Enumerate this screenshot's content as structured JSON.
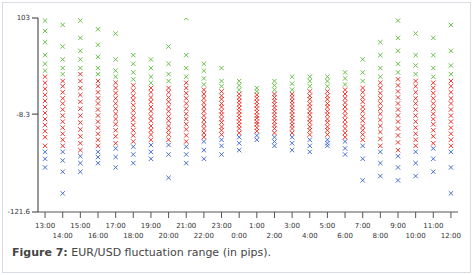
{
  "chart_data": {
    "type": "scatter",
    "caption": "Figure 7: EUR/USD fluctuation range (in pips).",
    "x": [
      0,
      1,
      2,
      3,
      4,
      5,
      6,
      7,
      8,
      9,
      10,
      11,
      12,
      13,
      14,
      15,
      16,
      17,
      18,
      19,
      20,
      21,
      22,
      23
    ],
    "xlim": [
      -0.4,
      23.4
    ],
    "xticks": [
      {
        "value": 0,
        "label": "13:00"
      },
      {
        "value": 1,
        "label": "14:00"
      },
      {
        "value": 2,
        "label": "15:00"
      },
      {
        "value": 3,
        "label": "16:00"
      },
      {
        "value": 4,
        "label": "17:00"
      },
      {
        "value": 5,
        "label": "18:00"
      },
      {
        "value": 6,
        "label": "19:00"
      },
      {
        "value": 7,
        "label": "20:00"
      },
      {
        "value": 8,
        "label": "21:00"
      },
      {
        "value": 9,
        "label": "22:00"
      },
      {
        "value": 10,
        "label": "23:00"
      },
      {
        "value": 11,
        "label": "0:00"
      },
      {
        "value": 12,
        "label": "1:00"
      },
      {
        "value": 13,
        "label": "2:00"
      },
      {
        "value": 14,
        "label": "3:00"
      },
      {
        "value": 15,
        "label": "4:00"
      },
      {
        "value": 16,
        "label": "5:00"
      },
      {
        "value": 17,
        "label": "6:00"
      },
      {
        "value": 18,
        "label": "7:00"
      },
      {
        "value": 19,
        "label": "8:00"
      },
      {
        "value": 20,
        "label": "9:00"
      },
      {
        "value": 21,
        "label": "10:00"
      },
      {
        "value": 22,
        "label": "11:00"
      },
      {
        "value": 23,
        "label": "12:00"
      }
    ],
    "ylim": [
      -121.6,
      103
    ],
    "yticks": [
      103,
      -8.3,
      -121.6
    ],
    "grid": false,
    "series": [
      {
        "color": "#e8221b",
        "marker": "x",
        "values": [
          [
            35,
            28,
            21,
            14,
            7,
            0,
            -7,
            -14,
            -21,
            -28,
            -35,
            -45
          ],
          [
            30,
            24,
            17,
            10,
            4,
            -3,
            -10,
            -17,
            -24,
            -31,
            -38,
            -45
          ],
          [
            38,
            30,
            22,
            14,
            6,
            -2,
            -10,
            -18,
            -26,
            -34,
            -42,
            -50
          ],
          [
            30,
            24,
            17,
            10,
            4,
            -3,
            -10,
            -17,
            -24,
            -31,
            -38,
            -45
          ],
          [
            28,
            22,
            16,
            10,
            4,
            -2,
            -8,
            -14,
            -20,
            -27,
            -34,
            -42
          ],
          [
            25,
            19,
            13,
            8,
            2,
            -4,
            -10,
            -15,
            -21,
            -27,
            -33,
            -40
          ],
          [
            22,
            17,
            11,
            6,
            0,
            -5,
            -11,
            -16,
            -22,
            -27,
            -32,
            -38
          ],
          [
            22,
            17,
            11,
            6,
            0,
            -5,
            -11,
            -16,
            -22,
            -27,
            -32,
            -38
          ],
          [
            28,
            22,
            16,
            10,
            4,
            -2,
            -8,
            -14,
            -20,
            -26,
            -33,
            -40
          ],
          [
            20,
            15,
            10,
            5,
            0,
            -5,
            -10,
            -15,
            -20,
            -25,
            -30,
            -35
          ],
          [
            18,
            13,
            9,
            4,
            0,
            -5,
            -9,
            -14,
            -18,
            -23,
            -27,
            -32
          ],
          [
            15,
            11,
            7,
            3,
            -1,
            -5,
            -9,
            -13,
            -17,
            -21,
            -25,
            -30
          ],
          [
            14,
            10,
            6,
            2,
            -2,
            -6,
            -10,
            -13,
            -17,
            -20,
            -24,
            -28
          ],
          [
            15,
            11,
            7,
            3,
            -1,
            -5,
            -9,
            -13,
            -17,
            -21,
            -25,
            -30
          ],
          [
            15,
            11,
            7,
            3,
            -1,
            -5,
            -9,
            -13,
            -17,
            -21,
            -25,
            -30
          ],
          [
            18,
            13,
            9,
            4,
            0,
            -5,
            -9,
            -14,
            -18,
            -23,
            -27,
            -32
          ],
          [
            18,
            13,
            9,
            4,
            0,
            -5,
            -9,
            -14,
            -18,
            -23,
            -27,
            -32
          ],
          [
            20,
            15,
            10,
            5,
            0,
            -5,
            -10,
            -15,
            -20,
            -25,
            -30,
            -35
          ],
          [
            22,
            17,
            11,
            6,
            0,
            -5,
            -11,
            -16,
            -22,
            -27,
            -32,
            -38
          ],
          [
            28,
            22,
            16,
            10,
            4,
            -2,
            -8,
            -15,
            -22,
            -29,
            -37,
            -45
          ],
          [
            32,
            25,
            18,
            11,
            4,
            -3,
            -10,
            -17,
            -25,
            -33,
            -41,
            -50
          ],
          [
            30,
            24,
            17,
            10,
            4,
            -3,
            -10,
            -17,
            -24,
            -31,
            -38,
            -45
          ],
          [
            28,
            22,
            16,
            10,
            4,
            -2,
            -8,
            -14,
            -20,
            -27,
            -34,
            -42
          ],
          [
            30,
            24,
            17,
            10,
            4,
            -3,
            -10,
            -17,
            -24,
            -31,
            -38,
            -45
          ]
        ]
      },
      {
        "color": "#5cb83a",
        "marker": "x",
        "values": [
          [
            42,
            50,
            60,
            75,
            88,
            100
          ],
          [
            38,
            45,
            55,
            70,
            95
          ],
          [
            45,
            55,
            65,
            80,
            100
          ],
          [
            38,
            45,
            58,
            72,
            90
          ],
          [
            35,
            42,
            55,
            85
          ],
          [
            32,
            40,
            50,
            60
          ],
          [
            28,
            35,
            45,
            55
          ],
          [
            30,
            38,
            50,
            70
          ],
          [
            35,
            45,
            60,
            103
          ],
          [
            26,
            33,
            42,
            50
          ],
          [
            24,
            30,
            45
          ],
          [
            20,
            25,
            30
          ],
          [
            18,
            22
          ],
          [
            20,
            25,
            30
          ],
          [
            20,
            27,
            35
          ],
          [
            24,
            30,
            35
          ],
          [
            24,
            30,
            35
          ],
          [
            26,
            33,
            40
          ],
          [
            30,
            40,
            55
          ],
          [
            35,
            45,
            60,
            75
          ],
          [
            40,
            50,
            65,
            80,
            100
          ],
          [
            38,
            48,
            60,
            85
          ],
          [
            35,
            45,
            60,
            80
          ],
          [
            38,
            48,
            65,
            95
          ]
        ]
      },
      {
        "color": "#3a5fcd",
        "marker": "x",
        "values": [
          [
            -52,
            -60,
            -70
          ],
          [
            -52,
            -62,
            -75,
            -100
          ],
          [
            -57,
            -65,
            -75
          ],
          [
            -52,
            -58,
            -65
          ],
          [
            -48,
            -58,
            -70
          ],
          [
            -46,
            -55,
            -65
          ],
          [
            -44,
            -52,
            -60
          ],
          [
            -44,
            -55,
            -82
          ],
          [
            -46,
            -55,
            -65
          ],
          [
            -40,
            -50,
            -60
          ],
          [
            -38,
            -45,
            -55
          ],
          [
            -35,
            -42,
            -50
          ],
          [
            -33,
            -38
          ],
          [
            -35,
            -40,
            -45
          ],
          [
            -35,
            -42,
            -50
          ],
          [
            -38,
            -45,
            -52
          ],
          [
            -38,
            -42,
            -45
          ],
          [
            -40,
            -48,
            -55
          ],
          [
            -45,
            -60,
            -85
          ],
          [
            -52,
            -65,
            -80
          ],
          [
            -57,
            -70,
            -85
          ],
          [
            -52,
            -65,
            -80
          ],
          [
            -48,
            -60,
            -75
          ],
          [
            -52,
            -70,
            -100
          ]
        ]
      }
    ]
  }
}
